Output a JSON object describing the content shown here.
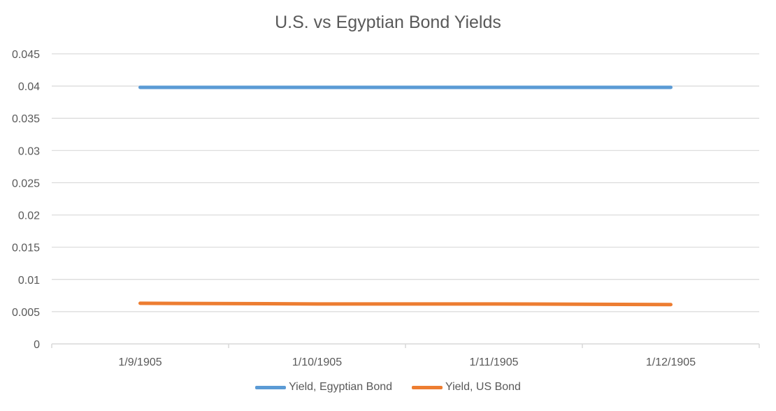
{
  "chart_data": {
    "type": "line",
    "title": "U.S. vs Egyptian Bond Yields",
    "xlabel": "",
    "ylabel": "",
    "categories": [
      "1/9/1905",
      "1/10/1905",
      "1/11/1905",
      "1/12/1905"
    ],
    "y_ticks": [
      "0",
      "0.005",
      "0.01",
      "0.015",
      "0.02",
      "0.025",
      "0.03",
      "0.035",
      "0.04",
      "0.045"
    ],
    "ylim": [
      0,
      0.045
    ],
    "grid": true,
    "legend_position": "bottom",
    "series": [
      {
        "name": "Yield, Egyptian Bond",
        "color": "#5b9bd5",
        "values": [
          0.0398,
          0.0398,
          0.0398,
          0.0398
        ]
      },
      {
        "name": "Yield, US Bond",
        "color": "#ed7d31",
        "values": [
          0.0063,
          0.0062,
          0.0062,
          0.0061
        ]
      }
    ]
  }
}
